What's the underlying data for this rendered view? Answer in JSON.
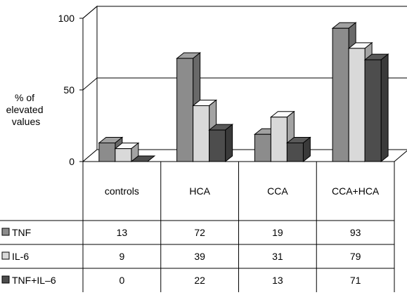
{
  "chart_data": {
    "type": "bar",
    "title": "",
    "xlabel": "",
    "ylabel": [
      "% of",
      "elevated",
      "values"
    ],
    "ylim": [
      0,
      100
    ],
    "yticks": [
      "0",
      "50",
      "100"
    ],
    "grid": true,
    "categories": [
      "controls",
      "HCA",
      "CCA",
      "CCA+HCA"
    ],
    "series": [
      {
        "name": "TNF",
        "values": [
          13,
          72,
          19,
          93
        ],
        "value_labels": [
          "13",
          "72",
          "19",
          "93"
        ],
        "color": "#8c8c8c"
      },
      {
        "name": "IL-6",
        "values": [
          9,
          39,
          31,
          79
        ],
        "value_labels": [
          "9",
          "39",
          "31",
          "79"
        ],
        "color": "#d9d9d9"
      },
      {
        "name": "TNF+IL–6",
        "values": [
          0,
          22,
          13,
          71
        ],
        "value_labels": [
          "0",
          "22",
          "13",
          "71"
        ],
        "color": "#4d4d4d"
      }
    ],
    "legend": "table-left"
  }
}
